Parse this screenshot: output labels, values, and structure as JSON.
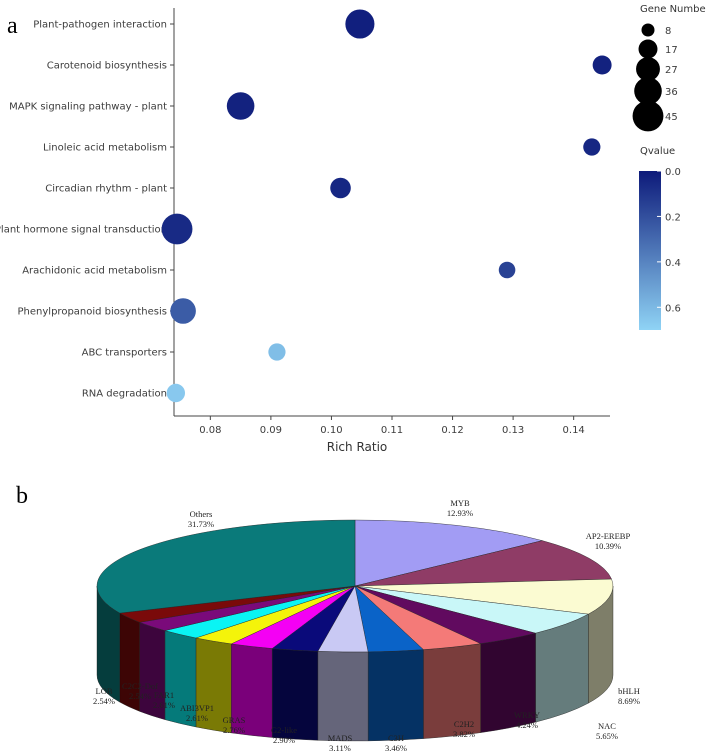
{
  "panels": {
    "a": "a",
    "b": "b"
  },
  "chart_data": [
    {
      "type": "scatter",
      "panel": "a",
      "xlabel": "Rich Ratio",
      "ylabel": "",
      "xlim": [
        0.074,
        0.146
      ],
      "x_ticks": [
        0.08,
        0.09,
        0.1,
        0.11,
        0.12,
        0.13,
        0.14
      ],
      "x_tick_labels": [
        "0.08",
        "0.09",
        "0.10",
        "0.11",
        "0.12",
        "0.13",
        "0.14"
      ],
      "categories": [
        "Plant-pathogen interaction",
        "Carotenoid biosynthesis",
        "MAPK signaling pathway - plant",
        "Linoleic acid metabolism",
        "Circadian rhythm - plant",
        "Plant hormone signal transduction",
        "Arachidonic acid metabolism",
        "Phenylpropanoid biosynthesis",
        "ABC transporters",
        "RNA degradation"
      ],
      "points": [
        {
          "category": "Plant-pathogen interaction",
          "x": 0.1047,
          "gene_number": 40,
          "qvalue": 0.02
        },
        {
          "category": "Carotenoid biosynthesis",
          "x": 0.1447,
          "gene_number": 17,
          "qvalue": 0.03
        },
        {
          "category": "MAPK signaling pathway - plant",
          "x": 0.085,
          "gene_number": 36,
          "qvalue": 0.03
        },
        {
          "category": "Linoleic acid metabolism",
          "x": 0.143,
          "gene_number": 14,
          "qvalue": 0.05
        },
        {
          "category": "Circadian rhythm - plant",
          "x": 0.1015,
          "gene_number": 20,
          "qvalue": 0.05
        },
        {
          "category": "Plant hormone signal transduction",
          "x": 0.0745,
          "gene_number": 45,
          "qvalue": 0.06
        },
        {
          "category": "Arachidonic acid metabolism",
          "x": 0.129,
          "gene_number": 13,
          "qvalue": 0.15
        },
        {
          "category": "Phenylpropanoid biosynthesis",
          "x": 0.0755,
          "gene_number": 31,
          "qvalue": 0.25
        },
        {
          "category": "ABC transporters",
          "x": 0.091,
          "gene_number": 14,
          "qvalue": 0.62
        },
        {
          "category": "RNA degradation",
          "x": 0.0743,
          "gene_number": 16,
          "qvalue": 0.66
        }
      ],
      "size_legend": {
        "title": "Gene Number",
        "values": [
          8,
          17,
          27,
          36,
          45
        ]
      },
      "color_legend": {
        "title": "Qvalue",
        "range": [
          0.0,
          0.7
        ],
        "ticks": [
          0.0,
          0.2,
          0.4,
          0.6
        ],
        "tick_labels": [
          "0.0",
          "0.2",
          "0.4",
          "0.6"
        ],
        "color_low": "#0d1a7a",
        "color_high": "#8fd3f5"
      }
    },
    {
      "type": "pie",
      "panel": "b",
      "style": "3d",
      "slices": [
        {
          "label": "MYB",
          "value": 12.93,
          "pct": "12.93%",
          "color": "#a29cf4"
        },
        {
          "label": "AP2-EREBP",
          "value": 10.39,
          "pct": "10.39%",
          "color": "#8f3c66"
        },
        {
          "label": "bHLH",
          "value": 8.69,
          "pct": "8.69%",
          "color": "#fbfbd2"
        },
        {
          "label": "NAC",
          "value": 5.65,
          "pct": "5.65%",
          "color": "#c9f7f8"
        },
        {
          "label": "WRKY",
          "value": 4.24,
          "pct": "4.24%",
          "color": "#610a5f"
        },
        {
          "label": "C2H2",
          "value": 3.82,
          "pct": "3.82%",
          "color": "#f47a78"
        },
        {
          "label": "C3H",
          "value": 3.46,
          "pct": "3.46%",
          "color": "#0a63c8"
        },
        {
          "label": "MADS",
          "value": 3.11,
          "pct": "3.11%",
          "color": "#c9c9f4"
        },
        {
          "label": "G2-like",
          "value": 2.9,
          "pct": "2.90%",
          "color": "#0a0a7a"
        },
        {
          "label": "GRAS",
          "value": 2.76,
          "pct": "2.76%",
          "color": "#f400f4"
        },
        {
          "label": "ABI3VP1",
          "value": 2.61,
          "pct": "2.61%",
          "color": "#f4f40a"
        },
        {
          "label": "FAR1",
          "value": 2.61,
          "pct": "2.61%",
          "color": "#0af4f4"
        },
        {
          "label": "C2C2-Dof",
          "value": 2.54,
          "pct": "2.54%",
          "color": "#7a0a7a"
        },
        {
          "label": "LOB",
          "value": 2.54,
          "pct": "2.54%",
          "color": "#7a0a0a"
        },
        {
          "label": "Others",
          "value": 31.73,
          "pct": "31.73%",
          "color": "#0a7a7a"
        }
      ]
    }
  ]
}
